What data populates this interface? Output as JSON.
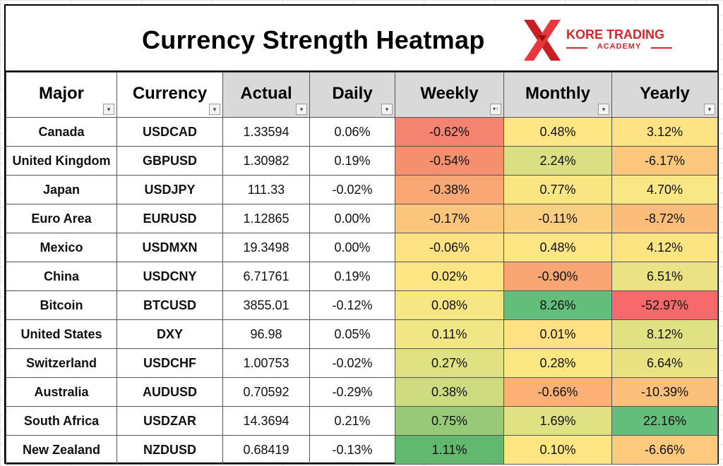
{
  "title": "Currency Strength Heatmap",
  "logo": {
    "name": "KORE TRADING",
    "sub": "ACADEMY",
    "color": "#d7262b"
  },
  "columns": [
    {
      "label": "Major",
      "shaded": false,
      "filter_icon": "filter-dropdown-icon"
    },
    {
      "label": "Currency",
      "shaded": false,
      "filter_icon": "filter-dropdown-icon"
    },
    {
      "label": "Actual",
      "shaded": true,
      "filter_icon": "filter-dropdown-icon"
    },
    {
      "label": "Daily",
      "shaded": true,
      "filter_icon": "filter-dropdown-icon"
    },
    {
      "label": "Weekly",
      "shaded": true,
      "filter_icon": "sort-filter-icon"
    },
    {
      "label": "Monthly",
      "shaded": true,
      "filter_icon": "filter-dropdown-icon"
    },
    {
      "label": "Yearly",
      "shaded": true,
      "filter_icon": "filter-dropdown-icon"
    }
  ],
  "rows": [
    {
      "major": "Canada",
      "currency": "USDCAD",
      "actual": "1.33594",
      "daily": "0.06%",
      "weekly": "-0.62%",
      "monthly": "0.48%",
      "yearly": "3.12%"
    },
    {
      "major": "United Kingdom",
      "currency": "GBPUSD",
      "actual": "1.30982",
      "daily": "0.19%",
      "weekly": "-0.54%",
      "monthly": "2.24%",
      "yearly": "-6.17%"
    },
    {
      "major": "Japan",
      "currency": "USDJPY",
      "actual": "111.33",
      "daily": "-0.02%",
      "weekly": "-0.38%",
      "monthly": "0.77%",
      "yearly": "4.70%"
    },
    {
      "major": "Euro Area",
      "currency": "EURUSD",
      "actual": "1.12865",
      "daily": "0.00%",
      "weekly": "-0.17%",
      "monthly": "-0.11%",
      "yearly": "-8.72%"
    },
    {
      "major": "Mexico",
      "currency": "USDMXN",
      "actual": "19.3498",
      "daily": "0.00%",
      "weekly": "-0.06%",
      "monthly": "0.48%",
      "yearly": "4.12%"
    },
    {
      "major": "China",
      "currency": "USDCNY",
      "actual": "6.71761",
      "daily": "0.19%",
      "weekly": "0.02%",
      "monthly": "-0.90%",
      "yearly": "6.51%"
    },
    {
      "major": "Bitcoin",
      "currency": "BTCUSD",
      "actual": "3855.01",
      "daily": "-0.12%",
      "weekly": "0.08%",
      "monthly": "8.26%",
      "yearly": "-52.97%"
    },
    {
      "major": "United States",
      "currency": "DXY",
      "actual": "96.98",
      "daily": "0.05%",
      "weekly": "0.11%",
      "monthly": "0.01%",
      "yearly": "8.12%"
    },
    {
      "major": "Switzerland",
      "currency": "USDCHF",
      "actual": "1.00753",
      "daily": "-0.02%",
      "weekly": "0.27%",
      "monthly": "0.28%",
      "yearly": "6.64%"
    },
    {
      "major": "Australia",
      "currency": "AUDUSD",
      "actual": "0.70592",
      "daily": "-0.29%",
      "weekly": "0.38%",
      "monthly": "-0.66%",
      "yearly": "-10.39%"
    },
    {
      "major": "South Africa",
      "currency": "USDZAR",
      "actual": "14.3694",
      "daily": "0.21%",
      "weekly": "0.75%",
      "monthly": "1.69%",
      "yearly": "22.16%"
    },
    {
      "major": "New Zealand",
      "currency": "NZDUSD",
      "actual": "0.68419",
      "daily": "-0.13%",
      "weekly": "1.11%",
      "monthly": "0.10%",
      "yearly": "-6.66%"
    }
  ],
  "heat_colors": {
    "weekly": [
      "#f4836f",
      "#f5906f",
      "#f9a775",
      "#fbc57b",
      "#fde383",
      "#fde583",
      "#f7e684",
      "#f1e685",
      "#dfe183",
      "#cfdb81",
      "#97c979",
      "#63b86f"
    ],
    "monthly": [
      "#fde683",
      "#d9df82",
      "#f9e683",
      "#fcce7f",
      "#fde683",
      "#f9a674",
      "#63be7b",
      "#fde183",
      "#fce883",
      "#fcb076",
      "#e0e183",
      "#fde583"
    ],
    "yearly": [
      "#fde383",
      "#fdc87d",
      "#f8e784",
      "#fcbd7b",
      "#fbe583",
      "#eae284",
      "#f8696b",
      "#e0e183",
      "#e9e283",
      "#fbc07b",
      "#63be7b",
      "#fdc97d"
    ]
  }
}
